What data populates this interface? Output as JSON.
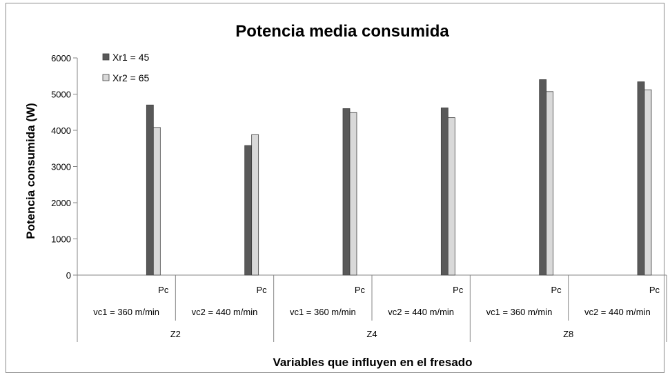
{
  "chart_data": {
    "type": "bar",
    "title": "Potencia media  consumida",
    "xlabel": "Variables que influyen en el fresado",
    "ylabel": "Potencia consumida (W)",
    "ylim": [
      0,
      6000
    ],
    "yticks": [
      "0",
      "1000",
      "2000",
      "3000",
      "4000",
      "5000",
      "6000"
    ],
    "grid": false,
    "legend_position": "top-left",
    "category_levels": {
      "inner": [
        "Pc",
        "Pc",
        "Pc",
        "Pc",
        "Pc",
        "Pc"
      ],
      "middle": [
        "vc1 = 360 m/min",
        "vc2 = 440 m/min",
        "vc1 = 360 m/min",
        "vc2 = 440 m/min",
        "vc1 = 360 m/min",
        "vc2 = 440 m/min"
      ],
      "outer": [
        "Z2",
        "Z4",
        "Z8"
      ]
    },
    "series": [
      {
        "name": "Xr1 = 45",
        "color": "#595959",
        "values": [
          4700,
          3580,
          4600,
          4620,
          5400,
          5340
        ]
      },
      {
        "name": "Xr2 = 65",
        "color": "#d9d9d9",
        "values": [
          4080,
          3880,
          4490,
          4350,
          5070,
          5120
        ]
      }
    ]
  }
}
